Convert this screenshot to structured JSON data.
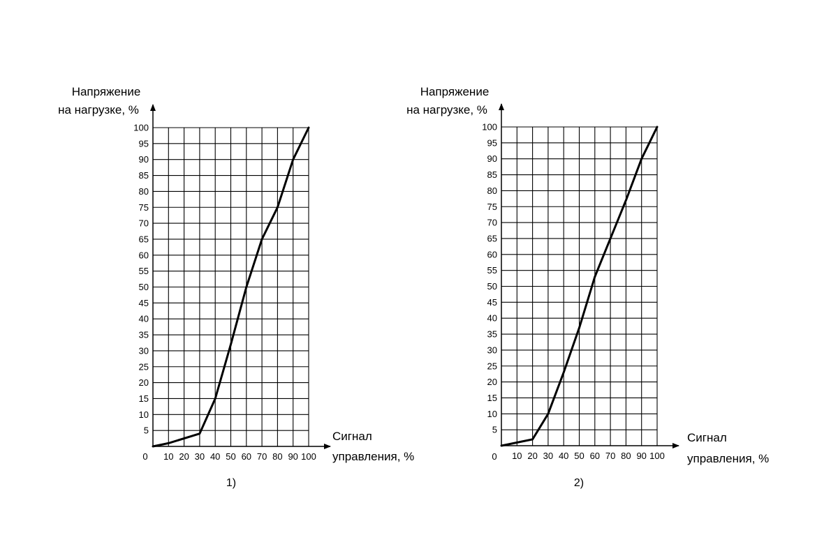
{
  "chart_data": [
    {
      "type": "line",
      "caption": "1)",
      "ylabel": [
        "Напряжение",
        "на нагрузке, %"
      ],
      "xlabel": [
        "Сигнал",
        "управления, %"
      ],
      "origin_label": "0",
      "xlim": [
        0,
        100
      ],
      "ylim": [
        0,
        100
      ],
      "x_ticks": [
        "10",
        "20",
        "30",
        "40",
        "50",
        "60",
        "70",
        "80",
        "90",
        "100"
      ],
      "y_ticks": [
        "5",
        "10",
        "15",
        "20",
        "25",
        "30",
        "35",
        "40",
        "45",
        "50",
        "55",
        "60",
        "65",
        "70",
        "75",
        "80",
        "85",
        "90",
        "95",
        "100"
      ],
      "grid": true,
      "series": [
        {
          "x": [
            0,
            10,
            30,
            40,
            50,
            60,
            70,
            80,
            90,
            100
          ],
          "y": [
            0,
            1,
            4,
            15,
            32,
            50,
            65,
            75,
            90,
            100
          ]
        }
      ]
    },
    {
      "type": "line",
      "caption": "2)",
      "ylabel": [
        "Напряжение",
        "на нагрузке, %"
      ],
      "xlabel": [
        "Сигнал",
        "управления, %"
      ],
      "origin_label": "0",
      "xlim": [
        0,
        100
      ],
      "ylim": [
        0,
        100
      ],
      "x_ticks": [
        "10",
        "20",
        "30",
        "40",
        "50",
        "60",
        "70",
        "80",
        "90",
        "100"
      ],
      "y_ticks": [
        "5",
        "10",
        "15",
        "20",
        "25",
        "30",
        "35",
        "40",
        "45",
        "50",
        "55",
        "60",
        "65",
        "70",
        "75",
        "80",
        "85",
        "90",
        "95",
        "100"
      ],
      "grid": true,
      "series": [
        {
          "x": [
            0,
            20,
            30,
            40,
            50,
            60,
            70,
            80,
            90,
            100
          ],
          "y": [
            0,
            2,
            10,
            23,
            37,
            53,
            65,
            77,
            90,
            100
          ]
        }
      ]
    }
  ]
}
